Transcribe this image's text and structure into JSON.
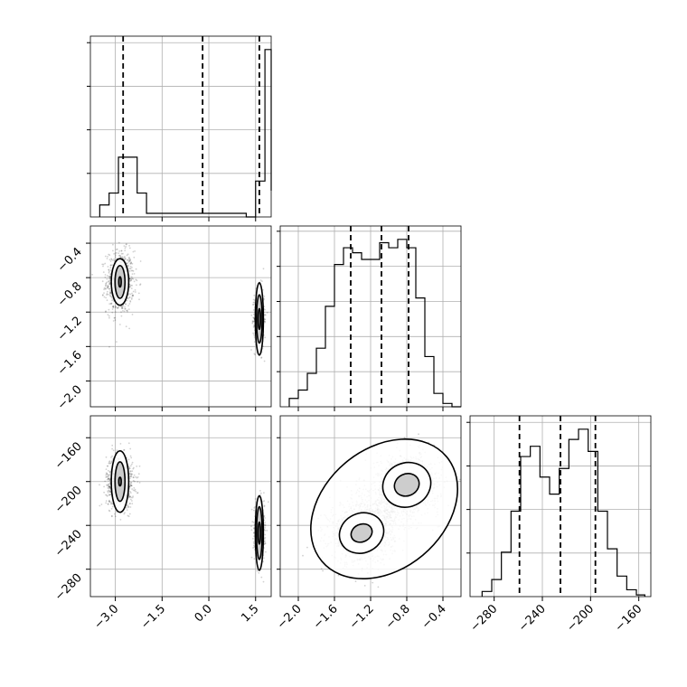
{
  "chart_data": {
    "type": "corner",
    "title": "",
    "grid": true,
    "panels": [
      {
        "type": "histogram",
        "row": 0,
        "col": 0,
        "xlim": [
          -3.8,
          2.0
        ],
        "bin_edges": [
          -3.5,
          -3.2,
          -2.9,
          -2.6,
          -2.3,
          -2.0,
          1.2,
          1.5,
          1.8,
          2.0
        ],
        "counts": [
          1,
          2,
          5,
          5,
          2,
          0.3,
          0,
          3,
          14,
          2.2
        ],
        "quantiles": [
          -2.75,
          -0.2,
          1.62
        ],
        "yticks_count": 4
      },
      {
        "type": "histogram",
        "row": 1,
        "col": 1,
        "xlim": [
          -2.2,
          -0.2
        ],
        "bin_edges": [
          -2.1,
          -2.0,
          -1.9,
          -1.8,
          -1.7,
          -1.6,
          -1.5,
          -1.4,
          -1.3,
          -1.2,
          -1.1,
          -1.0,
          -0.9,
          -0.8,
          -0.7,
          -0.6,
          -0.5,
          -0.4,
          -0.3,
          -0.2
        ],
        "counts": [
          0.05,
          0.1,
          0.2,
          0.35,
          0.6,
          0.85,
          0.95,
          0.92,
          0.88,
          0.88,
          0.98,
          0.95,
          1.0,
          0.95,
          0.65,
          0.3,
          0.08,
          0.02,
          0.0
        ],
        "quantiles": [
          -1.42,
          -1.08,
          -0.78
        ],
        "yticks_count": 5
      },
      {
        "type": "histogram",
        "row": 2,
        "col": 2,
        "xlim": [
          -300,
          -150
        ],
        "bin_edges": [
          -290,
          -282,
          -274,
          -266,
          -258,
          -250,
          -242,
          -234,
          -226,
          -218,
          -210,
          -202,
          -194,
          -186,
          -178,
          -170,
          -162,
          -155
        ],
        "counts": [
          0.03,
          0.1,
          0.26,
          0.5,
          0.82,
          0.88,
          0.7,
          0.6,
          0.75,
          0.92,
          0.98,
          0.85,
          0.5,
          0.28,
          0.12,
          0.04,
          0.01
        ],
        "quantiles": [
          -259,
          -225,
          -196
        ],
        "yticks_count": 4
      },
      {
        "type": "scatter",
        "row": 1,
        "col": 0,
        "xlim": [
          -3.8,
          2.0
        ],
        "ylim": [
          -2.3,
          -0.2
        ],
        "clusters": [
          {
            "x": -2.85,
            "y": -0.85,
            "sx": 0.22,
            "sy": 0.18,
            "n": 800
          },
          {
            "x": 1.62,
            "y": -1.28,
            "sx": 0.08,
            "sy": 0.17,
            "n": 700
          }
        ],
        "contours": [
          {
            "x": -2.85,
            "y": -0.85,
            "levels": [
              [
                0.28,
                0.27
              ],
              [
                0.16,
                0.19
              ],
              [
                0.04,
                0.06
              ]
            ]
          },
          {
            "x": 1.62,
            "y": -1.28,
            "levels": [
              [
                0.13,
                0.42
              ],
              [
                0.09,
                0.28
              ],
              [
                0.04,
                0.12
              ]
            ]
          }
        ]
      },
      {
        "type": "scatter",
        "row": 2,
        "col": 0,
        "xlim": [
          -3.8,
          2.0
        ],
        "ylim": [
          -305,
          -140
        ],
        "clusters": [
          {
            "x": -2.85,
            "y": -200,
            "sx": 0.22,
            "sy": 12,
            "n": 800
          },
          {
            "x": 1.62,
            "y": -247,
            "sx": 0.08,
            "sy": 13,
            "n": 700
          }
        ],
        "contours": [
          {
            "x": -2.85,
            "y": -200,
            "levels": [
              [
                0.28,
                28
              ],
              [
                0.16,
                18
              ],
              [
                0.04,
                4
              ]
            ]
          },
          {
            "x": 1.62,
            "y": -247,
            "levels": [
              [
                0.13,
                34
              ],
              [
                0.09,
                24
              ],
              [
                0.04,
                10
              ]
            ]
          }
        ]
      },
      {
        "type": "scatter",
        "row": 2,
        "col": 1,
        "xlim": [
          -2.2,
          -0.2
        ],
        "ylim": [
          -305,
          -140
        ],
        "clusters": [
          {
            "x": -1.3,
            "y": -247,
            "sx": 0.18,
            "sy": 14,
            "n": 900
          },
          {
            "x": -0.8,
            "y": -203,
            "sx": 0.18,
            "sy": 14,
            "n": 900
          },
          {
            "x": -1.05,
            "y": -225,
            "sx": 0.15,
            "sy": 12,
            "n": 300
          }
        ],
        "contours": [
          {
            "x": -1.05,
            "y": -225,
            "rotate": -40,
            "levels": [
              [
                0.9,
                55
              ]
            ]
          },
          {
            "x": -1.3,
            "y": -247,
            "rotate": -25,
            "levels": [
              [
                0.25,
                18
              ],
              [
                0.12,
                8
              ]
            ]
          },
          {
            "x": -0.8,
            "y": -203,
            "rotate": -25,
            "levels": [
              [
                0.27,
                20
              ],
              [
                0.14,
                10
              ]
            ]
          }
        ]
      }
    ],
    "axes": {
      "col0_xticks": [
        "−3.0",
        "−1.5",
        "0.0",
        "1.5"
      ],
      "col0_xtick_values": [
        -3.0,
        -1.5,
        0.0,
        1.5
      ],
      "col1_xticks": [
        "−2.0",
        "−1.6",
        "−1.2",
        "−0.8",
        "−0.4"
      ],
      "col1_xtick_values": [
        -2.0,
        -1.6,
        -1.2,
        -0.8,
        -0.4
      ],
      "col2_xticks": [
        "−280",
        "−240",
        "−200",
        "−160"
      ],
      "col2_xtick_values": [
        -280,
        -240,
        -200,
        -160
      ],
      "row1_yticks": [
        "−0.4",
        "−0.8",
        "−1.2",
        "−1.6",
        "−2.0"
      ],
      "row1_ytick_values": [
        -0.4,
        -0.8,
        -1.2,
        -1.6,
        -2.0
      ],
      "row2_yticks": [
        "−160",
        "−200",
        "−240",
        "−280"
      ],
      "row2_ytick_values": [
        -160,
        -200,
        -240,
        -280
      ]
    }
  }
}
